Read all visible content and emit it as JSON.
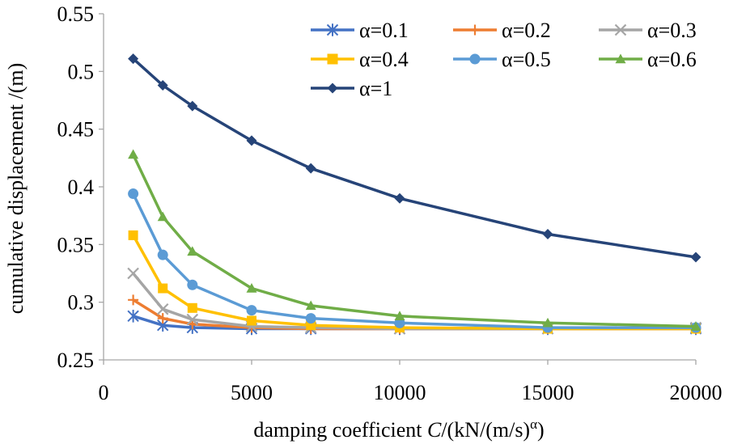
{
  "chart_data": {
    "type": "line",
    "xlabel": "damping coefficient ",
    "xlabel_var": "C",
    "xlabel_unit": "/(kN/(m/s)",
    "xlabel_exp": "α",
    "xlabel_close": ")",
    "ylabel": "cumulative displacement /(m)",
    "xlim": [
      0,
      20000
    ],
    "ylim": [
      0.25,
      0.55
    ],
    "xticks": [
      "0",
      "5000",
      "10000",
      "15000",
      "20000"
    ],
    "yticks": [
      "0.25",
      "0.3",
      "0.35",
      "0.4",
      "0.45",
      "0.5",
      "0.55"
    ],
    "x": [
      1000,
      2000,
      3000,
      5000,
      7000,
      10000,
      15000,
      20000
    ],
    "series": [
      {
        "name": "α=0.1",
        "color": "#4472c4",
        "marker": "asterisk",
        "values": [
          0.288,
          0.28,
          0.278,
          0.277,
          0.277,
          0.277,
          0.277,
          0.277
        ]
      },
      {
        "name": "α=0.2",
        "color": "#ed7d31",
        "marker": "plus",
        "values": [
          0.302,
          0.286,
          0.281,
          0.278,
          0.277,
          0.277,
          0.277,
          0.277
        ]
      },
      {
        "name": "α=0.3",
        "color": "#a5a5a5",
        "marker": "x",
        "values": [
          0.325,
          0.294,
          0.285,
          0.279,
          0.278,
          0.277,
          0.277,
          0.278
        ]
      },
      {
        "name": "α=0.4",
        "color": "#ffc000",
        "marker": "square",
        "values": [
          0.358,
          0.312,
          0.295,
          0.284,
          0.28,
          0.278,
          0.277,
          0.277
        ]
      },
      {
        "name": "α=0.5",
        "color": "#5b9bd5",
        "marker": "circle",
        "values": [
          0.394,
          0.341,
          0.315,
          0.293,
          0.286,
          0.282,
          0.278,
          0.278
        ]
      },
      {
        "name": "α=0.6",
        "color": "#70ad47",
        "marker": "triangle",
        "values": [
          0.428,
          0.374,
          0.344,
          0.312,
          0.297,
          0.288,
          0.282,
          0.279
        ]
      },
      {
        "name": "α=1",
        "color": "#264478",
        "marker": "diamond",
        "values": [
          0.511,
          0.488,
          0.47,
          0.44,
          0.416,
          0.39,
          0.359,
          0.339
        ]
      }
    ],
    "legend": "top-right"
  }
}
